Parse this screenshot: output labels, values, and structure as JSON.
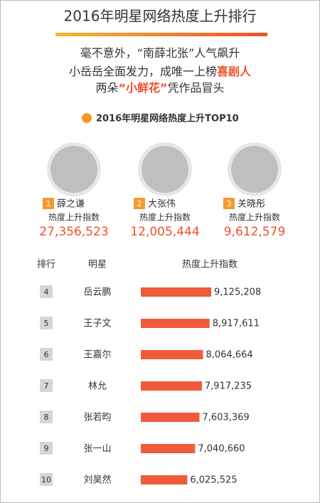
{
  "header": {
    "title": "2016年明星网络热度上升排行"
  },
  "intro": [
    [
      {
        "text": "毫不意外，“南薛北张”人气飙升",
        "hl": false
      }
    ],
    [
      {
        "text": "小岳岳全面发力，成唯一上榜",
        "hl": false
      },
      {
        "text": "喜剧人",
        "hl": true
      }
    ],
    [
      {
        "text": "两朵",
        "hl": false
      },
      {
        "text": "“小鲜花”",
        "hl": true
      },
      {
        "text": "凭作品冒头",
        "hl": false
      }
    ]
  ],
  "subtitle": "2016年明星网络热度上升TOP10",
  "top3": [
    {
      "rank": "1",
      "name": "薛之谦",
      "metric": "热度上升指数",
      "value": "27,356,523"
    },
    {
      "rank": "2",
      "name": "大张伟",
      "metric": "热度上升指数",
      "value": "12,005,444"
    },
    {
      "rank": "3",
      "name": "关晓彤",
      "metric": "热度上升指数",
      "value": "9,612,579"
    }
  ],
  "table": {
    "columns": [
      "排行",
      "明星",
      "热度上升指数"
    ],
    "rows": [
      {
        "rank": "4",
        "name": "岳云鹏",
        "value": 9125208,
        "label": "9,125,208"
      },
      {
        "rank": "5",
        "name": "王子文",
        "value": 8917611,
        "label": "8,917,611"
      },
      {
        "rank": "6",
        "name": "王嘉尔",
        "value": 8064664,
        "label": "8,064,664"
      },
      {
        "rank": "7",
        "name": "林允",
        "value": 7917235,
        "label": "7,917,235"
      },
      {
        "rank": "8",
        "name": "张若昀",
        "value": 7603369,
        "label": "7,603,369"
      },
      {
        "rank": "9",
        "name": "张一山",
        "value": 7040660,
        "label": "7,040,660"
      },
      {
        "rank": "10",
        "name": "刘昊然",
        "value": 6025525,
        "label": "6,025,525"
      }
    ]
  }
}
